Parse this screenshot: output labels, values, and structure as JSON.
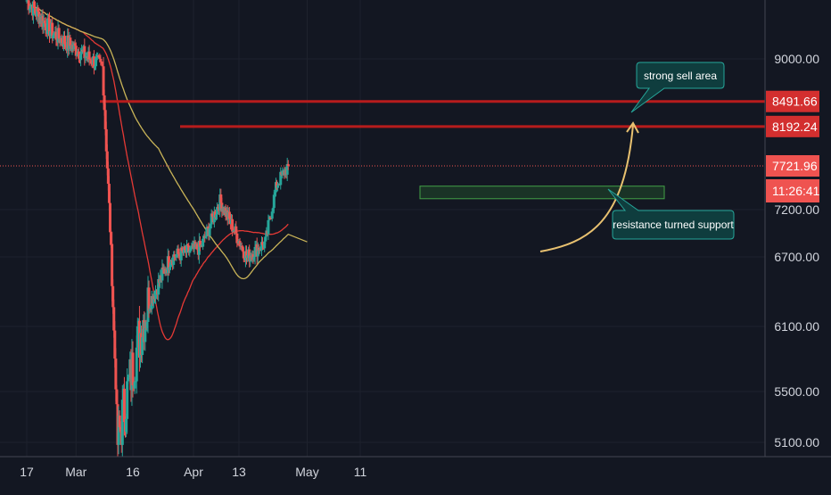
{
  "theme": {
    "background": "#131722",
    "grid": "#1e222d",
    "axis_text": "#d1d4dc",
    "up": "#26a69a",
    "down": "#ef5350",
    "ma_fast": "#e53935",
    "ma_slow": "#c9b458",
    "resistance": "#b71c1c",
    "support_box": "#2e7d32",
    "callout": "#0f3d3e",
    "callout_border": "#26a69a",
    "arrow": "#e8c170"
  },
  "chart_data": {
    "type": "candlestick",
    "x_tick_labels": [
      "17",
      "Mar",
      "16",
      "Apr",
      "13",
      "May",
      "11"
    ],
    "y_tick_labels": [
      9000,
      7200,
      6700,
      6100,
      5500,
      5100
    ],
    "ylim": [
      5040,
      10000
    ],
    "grid": true,
    "price_labels": [
      {
        "name": "resistance-1",
        "value": "8491.66",
        "price": 8491.66
      },
      {
        "name": "resistance-2",
        "value": "8192.24",
        "price": 8192.24
      },
      {
        "name": "last-price",
        "value": "7721.96",
        "price": 7721.96
      },
      {
        "name": "countdown",
        "value": "11:26:41",
        "price": 7420
      }
    ],
    "annotations": [
      {
        "name": "strong-sell-callout",
        "text": "strong sell area"
      },
      {
        "name": "resistance-support-callout",
        "text": "resistance turned support"
      }
    ],
    "key_points": [
      {
        "date": "Feb 17",
        "price": 9700
      },
      {
        "date": "Feb 24",
        "price": 9300
      },
      {
        "date": "Mar 8",
        "price": 8900
      },
      {
        "date": "Mar 12",
        "price": 5100
      },
      {
        "date": "Mar 19",
        "price": 6200
      },
      {
        "date": "Mar 26",
        "price": 6700
      },
      {
        "date": "Apr 3",
        "price": 6800
      },
      {
        "date": "Apr 8",
        "price": 7300
      },
      {
        "date": "Apr 15",
        "price": 6700
      },
      {
        "date": "Apr 20",
        "price": 6850
      },
      {
        "date": "Apr 23",
        "price": 7500
      },
      {
        "date": "Apr 26",
        "price": 7721.96
      }
    ]
  }
}
